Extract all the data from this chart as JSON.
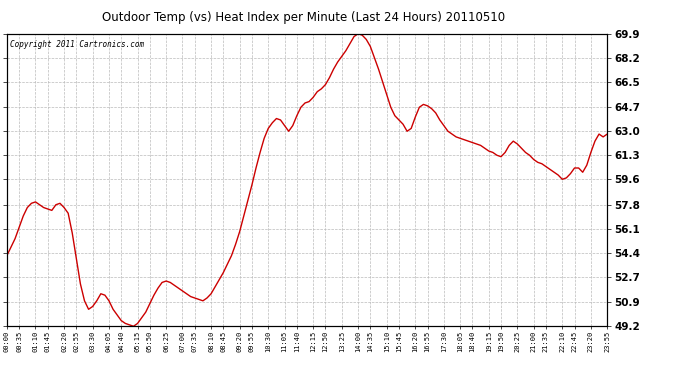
{
  "title": "Outdoor Temp (vs) Heat Index per Minute (Last 24 Hours) 20110510",
  "copyright": "Copyright 2011 Cartronics.com",
  "line_color": "#cc0000",
  "background_color": "#ffffff",
  "grid_color": "#bbbbbb",
  "yticks": [
    49.2,
    50.9,
    52.7,
    54.4,
    56.1,
    57.8,
    59.6,
    61.3,
    63.0,
    64.7,
    66.5,
    68.2,
    69.9
  ],
  "ymin": 49.2,
  "ymax": 69.9,
  "xtick_labels": [
    "00:00",
    "00:35",
    "01:10",
    "01:45",
    "02:20",
    "02:55",
    "03:30",
    "04:05",
    "04:40",
    "05:15",
    "05:50",
    "06:25",
    "07:00",
    "07:35",
    "08:10",
    "08:45",
    "09:20",
    "09:55",
    "10:30",
    "11:05",
    "11:40",
    "12:15",
    "12:50",
    "13:25",
    "14:00",
    "14:35",
    "15:10",
    "15:45",
    "16:20",
    "16:55",
    "17:30",
    "18:05",
    "18:40",
    "19:15",
    "19:50",
    "20:25",
    "21:00",
    "21:35",
    "22:10",
    "22:45",
    "23:20",
    "23:55"
  ],
  "curve_y": [
    54.2,
    54.8,
    55.4,
    56.2,
    57.0,
    57.6,
    57.9,
    58.0,
    57.8,
    57.6,
    57.5,
    57.4,
    57.8,
    57.9,
    57.6,
    57.2,
    55.8,
    54.0,
    52.2,
    51.0,
    50.4,
    50.6,
    51.0,
    51.5,
    51.4,
    51.0,
    50.4,
    50.0,
    49.6,
    49.4,
    49.3,
    49.2,
    49.4,
    49.8,
    50.2,
    50.8,
    51.4,
    51.9,
    52.3,
    52.4,
    52.3,
    52.1,
    51.9,
    51.7,
    51.5,
    51.3,
    51.2,
    51.1,
    51.0,
    51.2,
    51.5,
    52.0,
    52.5,
    53.0,
    53.6,
    54.2,
    55.0,
    55.9,
    57.0,
    58.1,
    59.2,
    60.4,
    61.5,
    62.5,
    63.2,
    63.6,
    63.9,
    63.8,
    63.4,
    63.0,
    63.4,
    64.1,
    64.7,
    65.0,
    65.1,
    65.4,
    65.8,
    66.0,
    66.3,
    66.8,
    67.4,
    67.9,
    68.3,
    68.7,
    69.2,
    69.7,
    69.9,
    69.8,
    69.5,
    69.0,
    68.2,
    67.4,
    66.5,
    65.6,
    64.7,
    64.1,
    63.8,
    63.5,
    63.0,
    63.2,
    64.0,
    64.7,
    64.9,
    64.8,
    64.6,
    64.3,
    63.8,
    63.4,
    63.0,
    62.8,
    62.6,
    62.5,
    62.4,
    62.3,
    62.2,
    62.1,
    62.0,
    61.8,
    61.6,
    61.5,
    61.3,
    61.2,
    61.5,
    62.0,
    62.3,
    62.1,
    61.8,
    61.5,
    61.3,
    61.0,
    60.8,
    60.7,
    60.5,
    60.3,
    60.1,
    59.9,
    59.6,
    59.7,
    60.0,
    60.4,
    60.4,
    60.1,
    60.6,
    61.5,
    62.3,
    62.8,
    62.6,
    62.8
  ]
}
